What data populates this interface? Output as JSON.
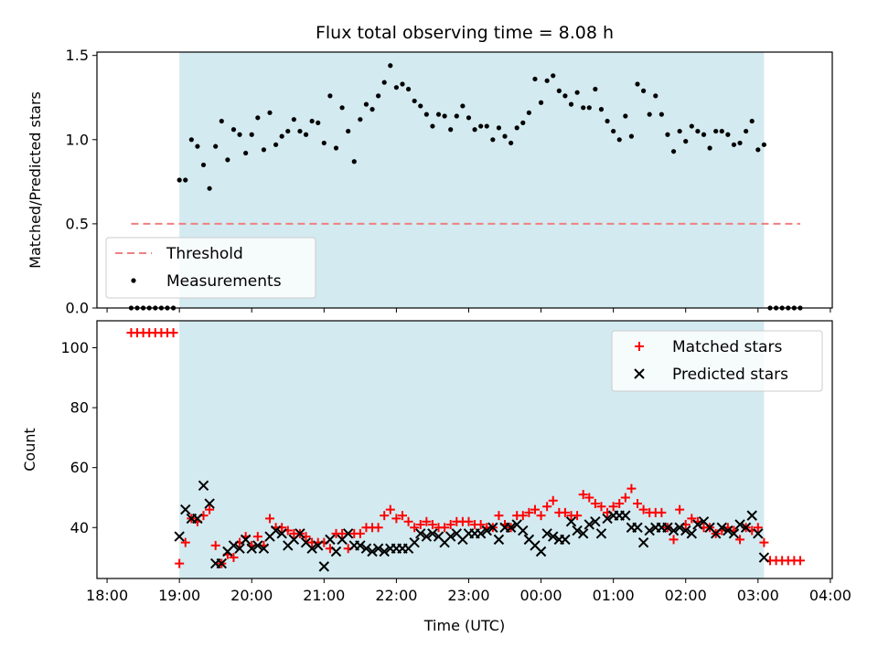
{
  "chart_data": [
    {
      "type": "scatter",
      "title": "Flux total observing time = 8.08 h",
      "xlabel": "",
      "ylabel": "Matched/Predicted stars",
      "x_axis": "time_utc",
      "xlim": [
        "18:00",
        "04:00"
      ],
      "ylim": [
        0.0,
        1.52
      ],
      "yticks": [
        0.0,
        0.5,
        1.0,
        1.5
      ],
      "ytick_labels": [
        "0.0",
        "0.5",
        "1.0",
        "1.5"
      ],
      "shaded_region": {
        "start": "19:00",
        "end": "03:05",
        "color": "#d3eaf0"
      },
      "threshold": {
        "name": "Threshold",
        "value": 0.5,
        "start": "18:20",
        "end": "03:35",
        "color": "#f08080"
      },
      "legend": {
        "position": "lower-left",
        "entries": [
          "Threshold",
          "Measurements"
        ]
      },
      "series": [
        {
          "name": "Measurements",
          "color": "#000000",
          "marker": "dot",
          "x": [
            "18:20",
            "18:25",
            "18:30",
            "18:35",
            "18:40",
            "18:45",
            "18:50",
            "18:55",
            "19:00",
            "19:05",
            "19:10",
            "19:15",
            "19:20",
            "19:25",
            "19:30",
            "19:35",
            "19:40",
            "19:45",
            "19:50",
            "19:55",
            "20:00",
            "20:05",
            "20:10",
            "20:15",
            "20:20",
            "20:25",
            "20:30",
            "20:35",
            "20:40",
            "20:45",
            "20:50",
            "20:55",
            "21:00",
            "21:05",
            "21:10",
            "21:15",
            "21:20",
            "21:25",
            "21:30",
            "21:35",
            "21:40",
            "21:45",
            "21:50",
            "21:55",
            "22:00",
            "22:05",
            "22:10",
            "22:15",
            "22:20",
            "22:25",
            "22:30",
            "22:35",
            "22:40",
            "22:45",
            "22:50",
            "22:55",
            "23:00",
            "23:05",
            "23:10",
            "23:15",
            "23:20",
            "23:25",
            "23:30",
            "23:35",
            "23:40",
            "23:45",
            "23:50",
            "23:55",
            "00:00",
            "00:05",
            "00:10",
            "00:15",
            "00:20",
            "00:25",
            "00:30",
            "00:35",
            "00:40",
            "00:45",
            "00:50",
            "00:55",
            "01:00",
            "01:05",
            "01:10",
            "01:15",
            "01:20",
            "01:25",
            "01:30",
            "01:35",
            "01:40",
            "01:45",
            "01:50",
            "01:55",
            "02:00",
            "02:05",
            "02:10",
            "02:15",
            "02:20",
            "02:25",
            "02:30",
            "02:35",
            "02:40",
            "02:45",
            "02:50",
            "02:55",
            "03:00",
            "03:05",
            "03:10",
            "03:15",
            "03:20",
            "03:25",
            "03:30",
            "03:35"
          ],
          "y": [
            0,
            0,
            0,
            0,
            0,
            0,
            0,
            0,
            0.76,
            0.76,
            1.0,
            0.96,
            0.85,
            0.71,
            0.96,
            1.11,
            0.88,
            1.06,
            1.03,
            0.92,
            1.03,
            1.13,
            0.94,
            1.16,
            0.97,
            1.02,
            1.05,
            1.12,
            1.05,
            1.03,
            1.11,
            1.1,
            0.98,
            1.26,
            0.95,
            1.19,
            1.05,
            0.87,
            1.12,
            1.21,
            1.18,
            1.26,
            1.34,
            1.44,
            1.31,
            1.33,
            1.3,
            1.23,
            1.2,
            1.15,
            1.08,
            1.15,
            1.14,
            1.06,
            1.14,
            1.2,
            1.13,
            1.06,
            1.08,
            1.08,
            1.0,
            1.07,
            1.02,
            0.98,
            1.07,
            1.1,
            1.16,
            1.36,
            1.22,
            1.35,
            1.38,
            1.29,
            1.26,
            1.21,
            1.28,
            1.19,
            1.19,
            1.3,
            1.18,
            1.11,
            1.05,
            1.0,
            1.14,
            1.02,
            1.33,
            1.29,
            1.15,
            1.26,
            1.15,
            1.03,
            0.93,
            1.05,
            0.99,
            1.08,
            1.05,
            1.03,
            0.95,
            1.05,
            1.05,
            1.03,
            0.97,
            0.98,
            1.05,
            1.11,
            0.94,
            0.97,
            0,
            0,
            0,
            0,
            0,
            0
          ]
        }
      ]
    },
    {
      "type": "scatter",
      "title": "",
      "xlabel": "Time (UTC)",
      "ylabel": "Count",
      "x_axis": "time_utc",
      "xlim": [
        "18:00",
        "04:00"
      ],
      "xticks": [
        "18:00",
        "19:00",
        "20:00",
        "21:00",
        "22:00",
        "23:00",
        "00:00",
        "01:00",
        "02:00",
        "03:00",
        "04:00"
      ],
      "ylim": [
        23,
        109
      ],
      "yticks": [
        40,
        60,
        80,
        100
      ],
      "ytick_labels": [
        "40",
        "60",
        "80",
        "100"
      ],
      "shaded_region": {
        "start": "19:00",
        "end": "03:05",
        "color": "#d3eaf0"
      },
      "legend": {
        "position": "top-right",
        "entries": [
          "Matched stars",
          "Predicted stars"
        ]
      },
      "series": [
        {
          "name": "Matched stars",
          "color": "#ff0000",
          "marker": "plus",
          "x": [
            "18:20",
            "18:25",
            "18:30",
            "18:35",
            "18:40",
            "18:45",
            "18:50",
            "18:55",
            "19:00",
            "19:05",
            "19:10",
            "19:15",
            "19:20",
            "19:25",
            "19:30",
            "19:35",
            "19:40",
            "19:45",
            "19:50",
            "19:55",
            "20:00",
            "20:05",
            "20:10",
            "20:15",
            "20:20",
            "20:25",
            "20:30",
            "20:35",
            "20:40",
            "20:45",
            "20:50",
            "20:55",
            "21:00",
            "21:05",
            "21:10",
            "21:15",
            "21:20",
            "21:25",
            "21:30",
            "21:35",
            "21:40",
            "21:45",
            "21:50",
            "21:55",
            "22:00",
            "22:05",
            "22:10",
            "22:15",
            "22:20",
            "22:25",
            "22:30",
            "22:35",
            "22:40",
            "22:45",
            "22:50",
            "22:55",
            "23:00",
            "23:05",
            "23:10",
            "23:15",
            "23:20",
            "23:25",
            "23:30",
            "23:35",
            "23:40",
            "23:45",
            "23:50",
            "23:55",
            "00:00",
            "00:05",
            "00:10",
            "00:15",
            "00:20",
            "00:25",
            "00:30",
            "00:35",
            "00:40",
            "00:45",
            "00:50",
            "00:55",
            "01:00",
            "01:05",
            "01:10",
            "01:15",
            "01:20",
            "01:25",
            "01:30",
            "01:35",
            "01:40",
            "01:45",
            "01:50",
            "01:55",
            "02:00",
            "02:05",
            "02:10",
            "02:15",
            "02:20",
            "02:25",
            "02:30",
            "02:35",
            "02:40",
            "02:45",
            "02:50",
            "02:55",
            "03:00",
            "03:05",
            "03:10",
            "03:15",
            "03:20",
            "03:25",
            "03:30",
            "03:35"
          ],
          "y": [
            105,
            105,
            105,
            105,
            105,
            105,
            105,
            105,
            28,
            35,
            43,
            42,
            44,
            46,
            34,
            28,
            31,
            30,
            35,
            37,
            34,
            37,
            34,
            43,
            40,
            40,
            39,
            38,
            38,
            37,
            35,
            35,
            35,
            33,
            38,
            38,
            33,
            38,
            38,
            40,
            40,
            40,
            44,
            46,
            43,
            44,
            42,
            40,
            41,
            42,
            41,
            40,
            40,
            41,
            42,
            42,
            42,
            41,
            41,
            40,
            40,
            44,
            41,
            40,
            44,
            44,
            45,
            46,
            44,
            47,
            49,
            45,
            45,
            44,
            44,
            51,
            50,
            48,
            47,
            45,
            47,
            48,
            50,
            53,
            48,
            46,
            45,
            45,
            45,
            40,
            36,
            46,
            41,
            43,
            42,
            40,
            40,
            38,
            39,
            40,
            39,
            36,
            40,
            39,
            40,
            35,
            29,
            29,
            29,
            29,
            29,
            29
          ]
        },
        {
          "name": "Predicted stars",
          "color": "#000000",
          "marker": "x",
          "x": [
            "19:00",
            "19:05",
            "19:10",
            "19:15",
            "19:20",
            "19:25",
            "19:30",
            "19:35",
            "19:40",
            "19:45",
            "19:50",
            "19:55",
            "20:00",
            "20:05",
            "20:10",
            "20:15",
            "20:20",
            "20:25",
            "20:30",
            "20:35",
            "20:40",
            "20:45",
            "20:50",
            "20:55",
            "21:00",
            "21:05",
            "21:10",
            "21:15",
            "21:20",
            "21:25",
            "21:30",
            "21:35",
            "21:40",
            "21:45",
            "21:50",
            "21:55",
            "22:00",
            "22:05",
            "22:10",
            "22:15",
            "22:20",
            "22:25",
            "22:30",
            "22:35",
            "22:40",
            "22:45",
            "22:50",
            "22:55",
            "23:00",
            "23:05",
            "23:10",
            "23:15",
            "23:20",
            "23:25",
            "23:30",
            "23:35",
            "23:40",
            "23:45",
            "23:50",
            "23:55",
            "00:00",
            "00:05",
            "00:10",
            "00:15",
            "00:20",
            "00:25",
            "00:30",
            "00:35",
            "00:40",
            "00:45",
            "00:50",
            "00:55",
            "01:00",
            "01:05",
            "01:10",
            "01:15",
            "01:20",
            "01:25",
            "01:30",
            "01:35",
            "01:40",
            "01:45",
            "01:50",
            "01:55",
            "02:00",
            "02:05",
            "02:10",
            "02:15",
            "02:20",
            "02:25",
            "02:30",
            "02:35",
            "02:40",
            "02:45",
            "02:50",
            "02:55",
            "03:00",
            "03:05"
          ],
          "y": [
            37,
            46,
            43,
            43,
            54,
            48,
            28,
            28,
            32,
            34,
            33,
            36,
            33,
            34,
            33,
            37,
            39,
            38,
            34,
            36,
            38,
            35,
            33,
            34,
            27,
            36,
            32,
            36,
            38,
            34,
            34,
            33,
            32,
            33,
            32,
            33,
            33,
            33,
            33,
            35,
            38,
            37,
            38,
            37,
            35,
            37,
            38,
            36,
            38,
            38,
            38,
            39,
            40,
            36,
            40,
            40,
            41,
            39,
            36,
            34,
            32,
            38,
            37,
            36,
            36,
            42,
            39,
            38,
            41,
            42,
            38,
            43,
            44,
            44,
            44,
            40,
            40,
            35,
            39,
            40,
            40,
            40,
            39,
            40,
            39,
            38,
            41,
            42,
            40,
            38,
            40,
            39,
            38,
            41,
            40,
            44,
            38,
            30
          ]
        }
      ]
    }
  ]
}
